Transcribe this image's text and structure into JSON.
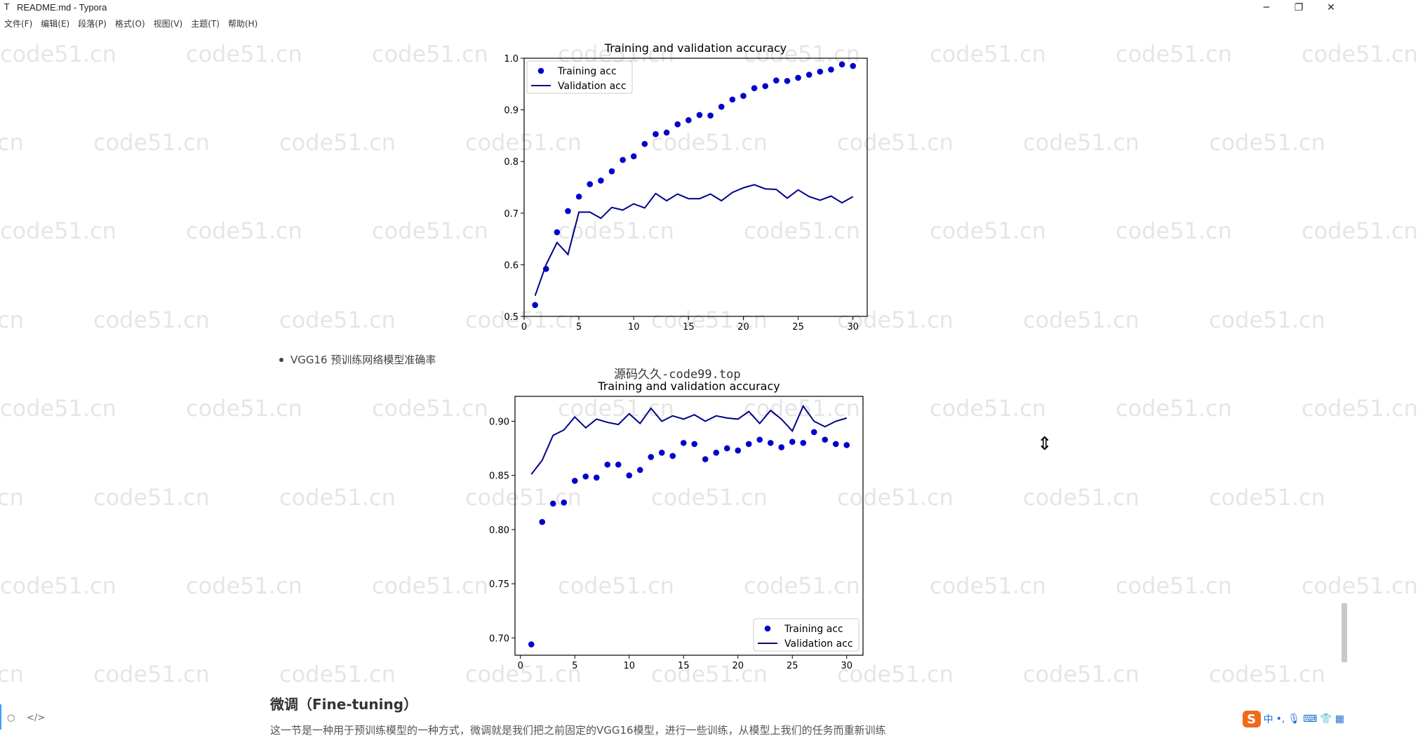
{
  "window": {
    "app_icon": "T",
    "title": "README.md - Typora",
    "controls": {
      "minimize": "─",
      "restore": "❐",
      "close": "✕"
    }
  },
  "menu": [
    "文件(F)",
    "编辑(E)",
    "段落(P)",
    "格式(O)",
    "视图(V)",
    "主题(T)",
    "帮助(H)"
  ],
  "watermark": "code51.cn",
  "content": {
    "bullet": "VGG16 预训练网络模型准确率",
    "overlay_text": "源码久久-code99.top",
    "heading": "微调（Fine-tuning）",
    "paragraph": "这一节是一种用于预训练模型的一种方式，微调就是我们把之前固定的VGG16模型，进行一些训练，从模型上我们的任务而重新训练"
  },
  "chart_data": [
    {
      "type": "scatter+line",
      "title": "Training and validation accuracy",
      "x": [
        1,
        2,
        3,
        4,
        5,
        6,
        7,
        8,
        9,
        10,
        11,
        12,
        13,
        14,
        15,
        16,
        17,
        18,
        19,
        20,
        21,
        22,
        23,
        24,
        25,
        26,
        27,
        28,
        29,
        30
      ],
      "xlim": [
        0,
        31.3
      ],
      "ylim": [
        0.5,
        1.0
      ],
      "xticks": [
        0,
        5,
        10,
        15,
        20,
        25,
        30
      ],
      "yticks": [
        0.5,
        0.6,
        0.7,
        0.8,
        0.9,
        1.0
      ],
      "ytick_labels": [
        "0.5",
        "0.6",
        "0.7",
        "0.8",
        "0.9",
        "1.0"
      ],
      "legend_position": "upper-left",
      "series": [
        {
          "name": "Training acc",
          "style": "dots",
          "color": "#0000cc",
          "values": [
            0.522,
            0.592,
            0.663,
            0.704,
            0.732,
            0.756,
            0.763,
            0.781,
            0.803,
            0.81,
            0.834,
            0.853,
            0.856,
            0.872,
            0.88,
            0.89,
            0.889,
            0.906,
            0.92,
            0.927,
            0.942,
            0.946,
            0.957,
            0.956,
            0.962,
            0.968,
            0.974,
            0.978,
            0.988,
            0.985
          ]
        },
        {
          "name": "Validation acc",
          "style": "line",
          "color": "#00008b",
          "values": [
            0.54,
            0.6,
            0.643,
            0.62,
            0.702,
            0.702,
            0.69,
            0.711,
            0.706,
            0.718,
            0.71,
            0.738,
            0.724,
            0.737,
            0.728,
            0.728,
            0.737,
            0.724,
            0.74,
            0.749,
            0.755,
            0.747,
            0.746,
            0.729,
            0.745,
            0.732,
            0.725,
            0.733,
            0.72,
            0.732
          ]
        }
      ]
    },
    {
      "type": "scatter+line",
      "title": "Training and validation accuracy",
      "x": [
        1,
        2,
        3,
        4,
        5,
        6,
        7,
        8,
        9,
        10,
        11,
        12,
        13,
        14,
        15,
        16,
        17,
        18,
        19,
        20,
        21,
        22,
        23,
        24,
        25,
        26,
        27,
        28,
        29,
        30
      ],
      "xlim": [
        -0.5,
        31.5
      ],
      "ylim": [
        0.684,
        0.923
      ],
      "xticks": [
        0,
        5,
        10,
        15,
        20,
        25,
        30
      ],
      "yticks": [
        0.7,
        0.75,
        0.8,
        0.85,
        0.9
      ],
      "ytick_labels": [
        "0.70",
        "0.75",
        "0.80",
        "0.85",
        "0.90"
      ],
      "legend_position": "lower-right",
      "series": [
        {
          "name": "Training acc",
          "style": "dots",
          "color": "#0000cc",
          "values": [
            0.694,
            0.807,
            0.824,
            0.825,
            0.845,
            0.849,
            0.848,
            0.86,
            0.86,
            0.85,
            0.855,
            0.867,
            0.871,
            0.868,
            0.88,
            0.879,
            0.865,
            0.871,
            0.875,
            0.873,
            0.879,
            0.883,
            0.88,
            0.876,
            0.881,
            0.88,
            0.89,
            0.883,
            0.879,
            0.878
          ]
        },
        {
          "name": "Validation acc",
          "style": "line",
          "color": "#00008b",
          "values": [
            0.851,
            0.864,
            0.887,
            0.892,
            0.904,
            0.894,
            0.902,
            0.899,
            0.897,
            0.907,
            0.898,
            0.912,
            0.9,
            0.905,
            0.902,
            0.906,
            0.9,
            0.905,
            0.903,
            0.902,
            0.909,
            0.898,
            0.91,
            0.902,
            0.891,
            0.914,
            0.9,
            0.895,
            0.9,
            0.903
          ]
        }
      ]
    }
  ]
}
